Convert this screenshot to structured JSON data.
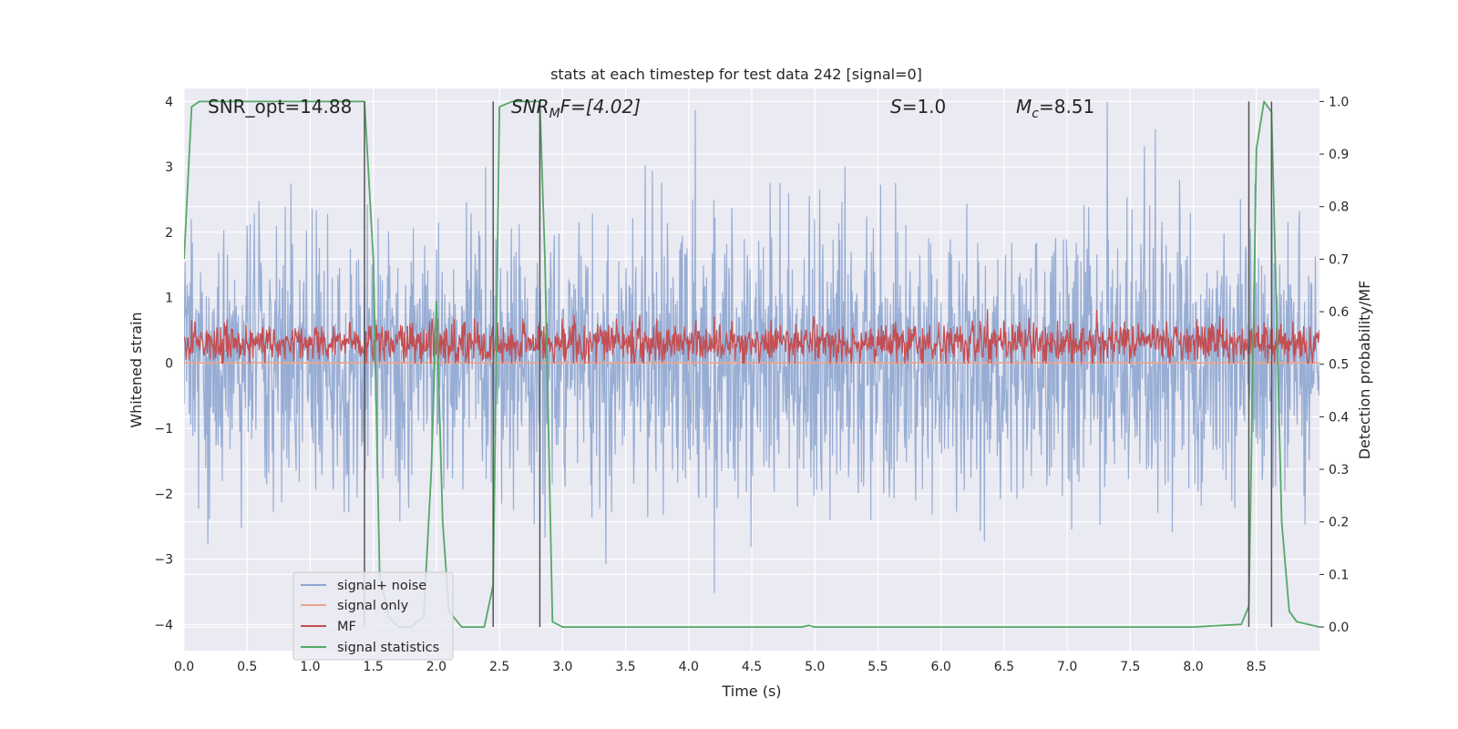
{
  "chart_data": {
    "type": "line",
    "title": "stats at each timestep for test data 242 [signal=0]",
    "xlabel": "Time (s)",
    "ylabel": "Whitened strain",
    "ylabel_right": "Detection probability/MF",
    "xlim": [
      0.0,
      9.0
    ],
    "ylim": [
      -4.4,
      4.2
    ],
    "ylim_right": [
      -0.045,
      1.025
    ],
    "grid": true,
    "legend_position": "lower-left",
    "x_ticks": [
      "0.0",
      "0.5",
      "1.0",
      "1.5",
      "2.0",
      "2.5",
      "3.0",
      "3.5",
      "4.0",
      "4.5",
      "5.0",
      "5.5",
      "6.0",
      "6.5",
      "7.0",
      "7.5",
      "8.0",
      "8.5"
    ],
    "y_ticks": [
      "4",
      "3",
      "2",
      "1",
      "0",
      "−1",
      "−2",
      "−3",
      "−4"
    ],
    "y_ticks_right": [
      "1.0",
      "0.9",
      "0.8",
      "0.7",
      "0.6",
      "0.5",
      "0.4",
      "0.3",
      "0.2",
      "0.1",
      "0.0"
    ],
    "annotations": {
      "snr_opt": "SNR_opt=14.88",
      "snr_mf_label": "SNR",
      "snr_mf_sub": "M",
      "snr_mf_rest": "F=[4.02]",
      "s_label": "S",
      "s_rest": "=1.0",
      "mc_label": "M",
      "mc_sub": "c",
      "mc_rest": "=8.51"
    },
    "vertical_lines_x": [
      1.43,
      2.45,
      2.82,
      8.44,
      8.62
    ],
    "series": [
      {
        "name": "signal+ noise",
        "color": "#8fa7d1",
        "axis": "left",
        "noise": {
          "n": 2200,
          "sigma": 1.05,
          "clip": [
            -4.0,
            4.0
          ],
          "seed": 242
        }
      },
      {
        "name": "signal only",
        "color": "#e9a68e",
        "axis": "left",
        "x": [
          0.0,
          9.0
        ],
        "y": [
          0.0,
          0.0
        ]
      },
      {
        "name": "MF",
        "color": "#c44e52",
        "axis": "left",
        "noise": {
          "n": 1800,
          "center": 0.3,
          "sigma": 0.16,
          "clip": [
            0.0,
            0.95
          ],
          "seed": 17
        }
      },
      {
        "name": "signal statistics",
        "color": "#55a868",
        "axis": "right",
        "x": [
          0.0,
          0.06,
          0.12,
          0.5,
          1.0,
          1.43,
          1.5,
          1.55,
          1.62,
          1.7,
          1.8,
          1.9,
          1.96,
          2.0,
          2.05,
          2.1,
          2.2,
          2.3,
          2.38,
          2.45,
          2.5,
          2.6,
          2.82,
          2.86,
          2.92,
          3.0,
          3.1,
          4.0,
          4.9,
          4.95,
          5.0,
          6.0,
          7.0,
          8.0,
          8.15,
          8.38,
          8.44,
          8.5,
          8.56,
          8.62,
          8.7,
          8.76,
          8.82,
          9.0
        ],
        "y": [
          0.7,
          0.99,
          1.0,
          1.0,
          1.0,
          1.0,
          0.7,
          0.1,
          0.02,
          0.0,
          0.0,
          0.02,
          0.3,
          0.62,
          0.2,
          0.03,
          0.0,
          0.0,
          0.0,
          0.08,
          0.99,
          1.0,
          1.0,
          0.7,
          0.01,
          0.0,
          0.0,
          0.0,
          0.0,
          0.003,
          0.0,
          0.0,
          0.0,
          0.0,
          0.002,
          0.005,
          0.04,
          0.91,
          1.0,
          0.98,
          0.2,
          0.03,
          0.01,
          0.0
        ]
      }
    ]
  }
}
